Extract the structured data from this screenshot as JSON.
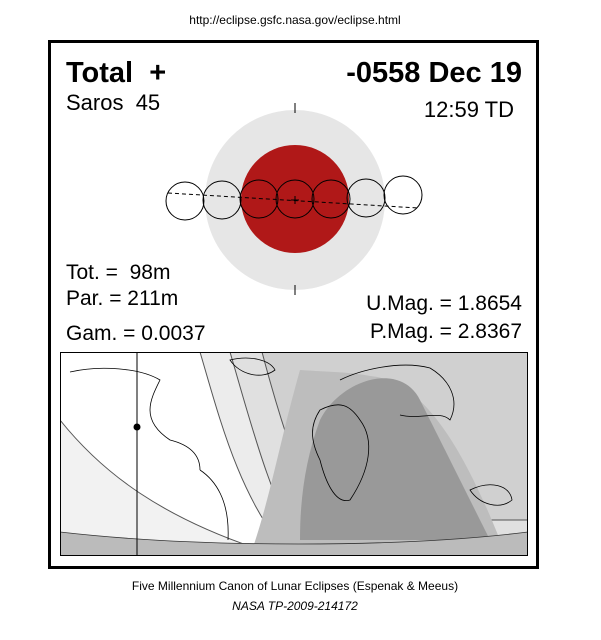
{
  "header": {
    "url": "http://eclipse.gsfc.nasa.gov/eclipse.html"
  },
  "eclipse": {
    "type": "Total  +",
    "date": "-0558 Dec 19",
    "saros": "Saros  45",
    "time": "12:59 TD",
    "totality": "Tot. =  98m",
    "partial": "Par. = 211m",
    "gamma": "Gam. = 0.0037",
    "umbral_magnitude": "U.Mag. = 1.8654",
    "penumbral_magnitude": "P.Mag. = 2.8367"
  },
  "footer": {
    "canon": "Five Millennium Canon of Lunar Eclipses (Espenak & Meeus)",
    "publication": "NASA TP-2009-214172"
  }
}
